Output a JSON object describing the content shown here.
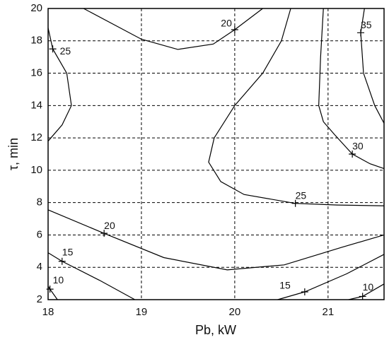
{
  "chart_data": {
    "type": "contour",
    "xlabel": "Pb, kW",
    "ylabel": "τ, min",
    "xlim": [
      18,
      21.6
    ],
    "ylim": [
      2,
      20
    ],
    "xticks": [
      18,
      19,
      20,
      21
    ],
    "yticks": [
      2,
      4,
      6,
      8,
      10,
      12,
      14,
      16,
      18,
      20
    ],
    "grid": true,
    "color": "#000000",
    "series": [
      {
        "level": 20,
        "x": [
          18.38,
          19.0,
          19.39,
          19.77,
          20.0,
          20.3
        ],
        "y": [
          20,
          18.1,
          17.47,
          17.8,
          18.69,
          20
        ],
        "label_x": 20.0,
        "label_y": 18.69
      },
      {
        "level": 25,
        "x": [
          18,
          18.05,
          18.2,
          18.25,
          18.15,
          18
        ],
        "y": [
          18.8,
          17.5,
          16,
          14,
          12.8,
          11.8
        ],
        "label_x": 18.05,
        "label_y": 17.5
      },
      {
        "level": 25,
        "x": [
          20.6,
          20.5,
          20.3,
          20.0,
          19.78,
          19.72,
          19.85,
          20.1,
          20.65,
          21.1,
          21.6
        ],
        "y": [
          20,
          18,
          16,
          14,
          12,
          10.5,
          9.3,
          8.5,
          7.95,
          7.85,
          7.8
        ],
        "label_x": 20.65,
        "label_y": 7.95
      },
      {
        "level": 30,
        "x": [
          20.95,
          20.92,
          20.9,
          20.95,
          21.07,
          21.26,
          21.45,
          21.6
        ],
        "y": [
          20,
          17,
          14,
          13,
          12.2,
          11,
          10.4,
          10.1
        ],
        "label_x": 21.26,
        "label_y": 11
      },
      {
        "level": 35,
        "x": [
          21.39,
          21.35,
          21.38,
          21.5,
          21.6
        ],
        "y": [
          20,
          18.5,
          16,
          14,
          12.9
        ],
        "label_x": 21.35,
        "label_y": 18.5
      },
      {
        "level": 20,
        "x": [
          18,
          18.6,
          19.24,
          19.92,
          20.53,
          21.15,
          21.6
        ],
        "y": [
          7.55,
          6.1,
          4.6,
          3.84,
          4.15,
          5.24,
          6.0
        ],
        "label_x": 18.6,
        "label_y": 6.1
      },
      {
        "level": 15,
        "x": [
          18,
          18.15,
          18.55,
          18.93
        ],
        "y": [
          4.9,
          4.37,
          3.2,
          2
        ],
        "label_x": 18.15,
        "label_y": 4.37
      },
      {
        "level": 10,
        "x": [
          18,
          18.02,
          18.1
        ],
        "y": [
          2.83,
          2.65,
          2
        ],
        "label_x": 18.02,
        "label_y": 2.65
      },
      {
        "level": 15,
        "x": [
          20.46,
          20.75,
          21.2,
          21.6
        ],
        "y": [
          2,
          2.48,
          3.6,
          4.8
        ],
        "label_x": 20.75,
        "label_y": 2.48
      },
      {
        "level": 10,
        "x": [
          21.22,
          21.37,
          21.6
        ],
        "y": [
          2,
          2.2,
          2.97
        ],
        "label_x": 21.37,
        "label_y": 2.2
      }
    ]
  }
}
